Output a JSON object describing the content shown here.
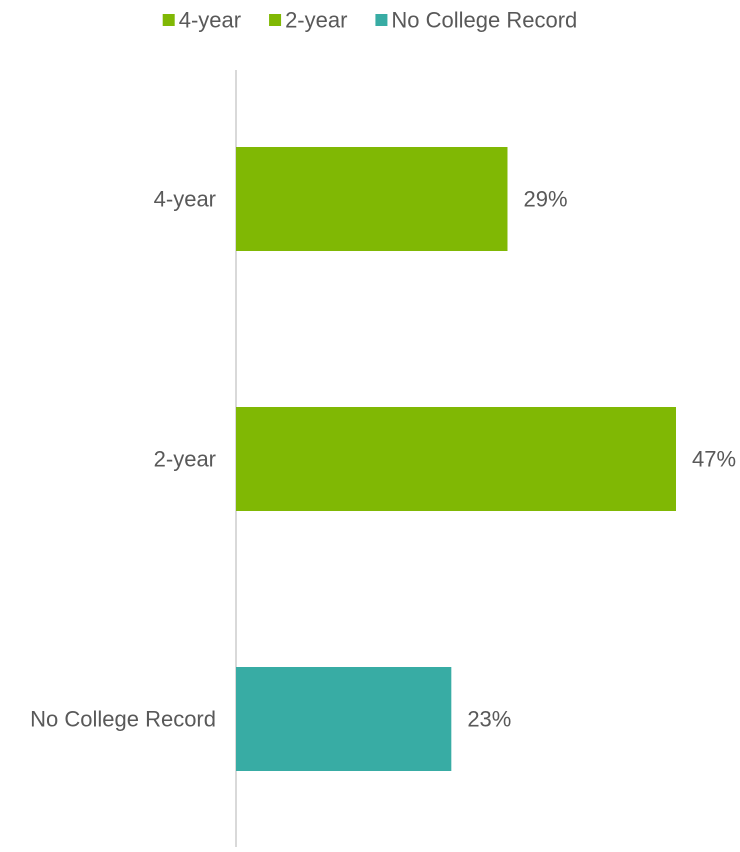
{
  "chart_data": {
    "type": "bar",
    "orientation": "horizontal",
    "categories": [
      "4-year",
      "2-year",
      "No College Record"
    ],
    "values": [
      29,
      47,
      23
    ],
    "value_labels": [
      "29%",
      "47%",
      "23%"
    ],
    "bar_colors": [
      "#80b804",
      "#80b804",
      "#38aca4"
    ],
    "value_unit": "%",
    "xlim": [
      0,
      47
    ],
    "legend": {
      "position": "top",
      "entries": [
        {
          "label": "4-year",
          "color": "#80b804"
        },
        {
          "label": "2-year",
          "color": "#80b804"
        },
        {
          "label": "No College Record",
          "color": "#38aca4"
        }
      ]
    },
    "grid": false,
    "axis_line_color": "#d9d9d9",
    "label_color": "#595959"
  }
}
